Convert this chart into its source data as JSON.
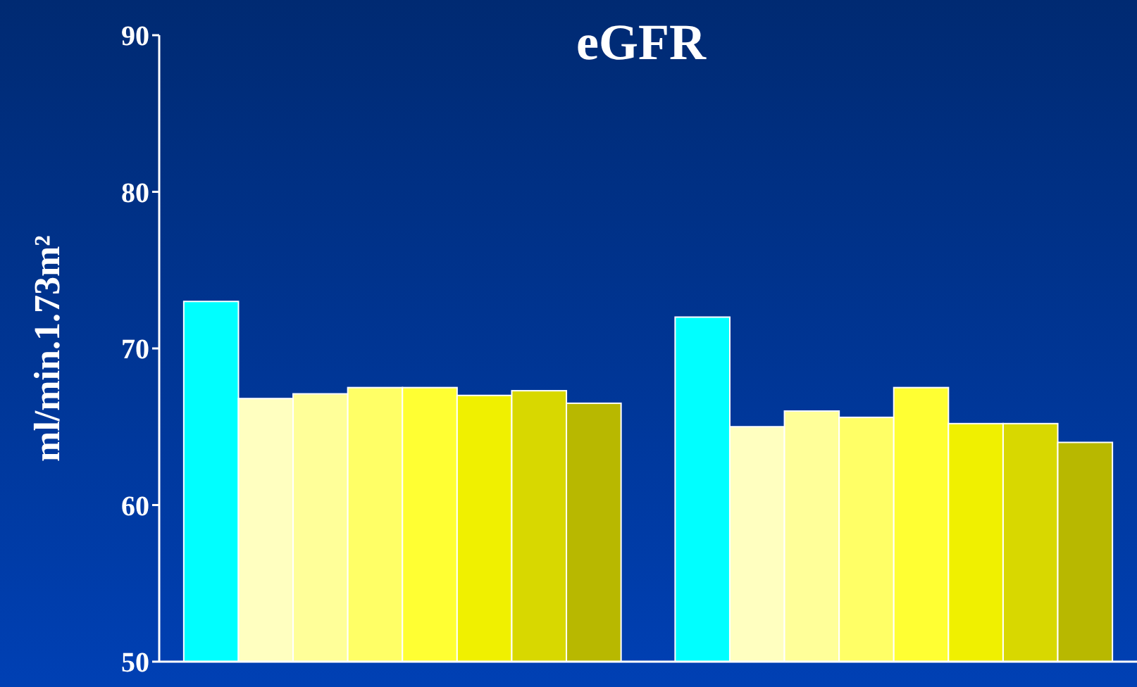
{
  "chart_data": {
    "type": "bar",
    "title": "eGFR",
    "ylabel": "ml/min.1.73m²",
    "categories": [
      null,
      null
    ],
    "series": [
      {
        "color": "#00ffff",
        "values": [
          73,
          72
        ]
      },
      {
        "color": "#ffffc0",
        "values": [
          66.8,
          65
        ]
      },
      {
        "color": "#ffff99",
        "values": [
          67.1,
          66
        ]
      },
      {
        "color": "#ffff66",
        "values": [
          67.5,
          65.6
        ]
      },
      {
        "color": "#ffff33",
        "values": [
          67.5,
          67.5
        ]
      },
      {
        "color": "#f0f000",
        "values": [
          67,
          65.2
        ]
      },
      {
        "color": "#d8d800",
        "values": [
          67.3,
          65.2
        ]
      },
      {
        "color": "#b8b800",
        "values": [
          66.5,
          64
        ]
      }
    ],
    "ylim": [
      50,
      90
    ],
    "yticks": [
      50,
      60,
      70,
      80,
      90
    ],
    "grid": false
  }
}
